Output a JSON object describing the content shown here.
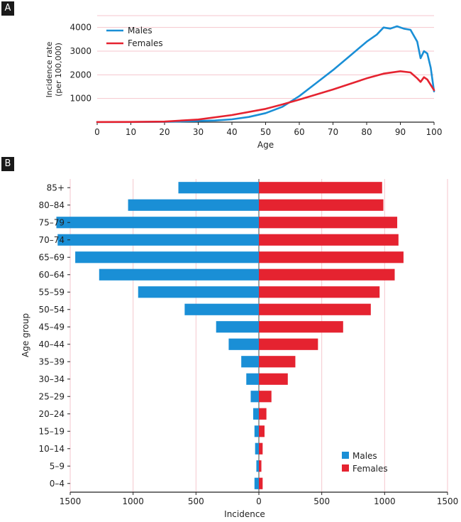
{
  "panels": {
    "a_label": "A",
    "b_label": "B"
  },
  "chart_data": [
    {
      "type": "line",
      "panel": "A",
      "xlabel": "Age",
      "ylabel_line1": "Incidence rate",
      "ylabel_line2": "(per 100,000)",
      "xlim": [
        0,
        100
      ],
      "ylim": [
        0,
        4500
      ],
      "xticks": [
        0,
        10,
        20,
        30,
        40,
        50,
        60,
        70,
        80,
        90,
        100
      ],
      "yticks": [
        1000,
        2000,
        3000,
        4000
      ],
      "gridlines_y": [
        1000,
        2000,
        3000,
        4000,
        4500
      ],
      "legend": {
        "position": "top-left"
      },
      "series": [
        {
          "name": "Males",
          "color": "#1a8fd6",
          "points": [
            [
              0,
              5
            ],
            [
              10,
              5
            ],
            [
              20,
              15
            ],
            [
              25,
              30
            ],
            [
              30,
              50
            ],
            [
              35,
              70
            ],
            [
              40,
              120
            ],
            [
              45,
              220
            ],
            [
              50,
              380
            ],
            [
              55,
              650
            ],
            [
              60,
              1100
            ],
            [
              65,
              1650
            ],
            [
              70,
              2200
            ],
            [
              75,
              2800
            ],
            [
              80,
              3400
            ],
            [
              83,
              3700
            ],
            [
              85,
              4000
            ],
            [
              87,
              3950
            ],
            [
              89,
              4050
            ],
            [
              91,
              3950
            ],
            [
              93,
              3900
            ],
            [
              95,
              3400
            ],
            [
              96,
              2700
            ],
            [
              97,
              3000
            ],
            [
              98,
              2900
            ],
            [
              99,
              2300
            ],
            [
              100,
              1300
            ]
          ]
        },
        {
          "name": "Females",
          "color": "#e52330",
          "points": [
            [
              0,
              5
            ],
            [
              10,
              8
            ],
            [
              20,
              25
            ],
            [
              30,
              110
            ],
            [
              40,
              300
            ],
            [
              50,
              560
            ],
            [
              55,
              750
            ],
            [
              60,
              950
            ],
            [
              70,
              1380
            ],
            [
              80,
              1850
            ],
            [
              85,
              2050
            ],
            [
              90,
              2150
            ],
            [
              93,
              2100
            ],
            [
              95,
              1850
            ],
            [
              96,
              1700
            ],
            [
              97,
              1900
            ],
            [
              98,
              1800
            ],
            [
              100,
              1350
            ]
          ]
        }
      ]
    },
    {
      "type": "bar",
      "panel": "B",
      "orientation": "horizontal-diverging",
      "xlabel": "Incidence",
      "ylabel": "Age group",
      "xlim": [
        -1500,
        1500
      ],
      "xtick_values": [
        -1500,
        -1000,
        -500,
        0,
        500,
        1000,
        1500
      ],
      "xtick_labels": [
        "1500",
        "1000",
        "500",
        "0",
        "500",
        "1000",
        "1500"
      ],
      "legend": {
        "position": "bottom-right"
      },
      "categories": [
        "85+",
        "80–84",
        "75–79",
        "70–74",
        "65–69",
        "60–64",
        "55–59",
        "50–54",
        "45–49",
        "40–44",
        "35–39",
        "30–34",
        "25–29",
        "20–24",
        "15–19",
        "10–14",
        "5–9",
        "0–4"
      ],
      "series": [
        {
          "name": "Males",
          "color": "#1a8fd6",
          "values": [
            640,
            1040,
            1610,
            1600,
            1460,
            1270,
            960,
            590,
            340,
            240,
            140,
            100,
            65,
            45,
            35,
            30,
            20,
            35
          ]
        },
        {
          "name": "Females",
          "color": "#e52330",
          "values": [
            980,
            990,
            1100,
            1110,
            1150,
            1080,
            960,
            890,
            670,
            470,
            290,
            230,
            100,
            60,
            45,
            30,
            20,
            30
          ]
        }
      ]
    }
  ]
}
